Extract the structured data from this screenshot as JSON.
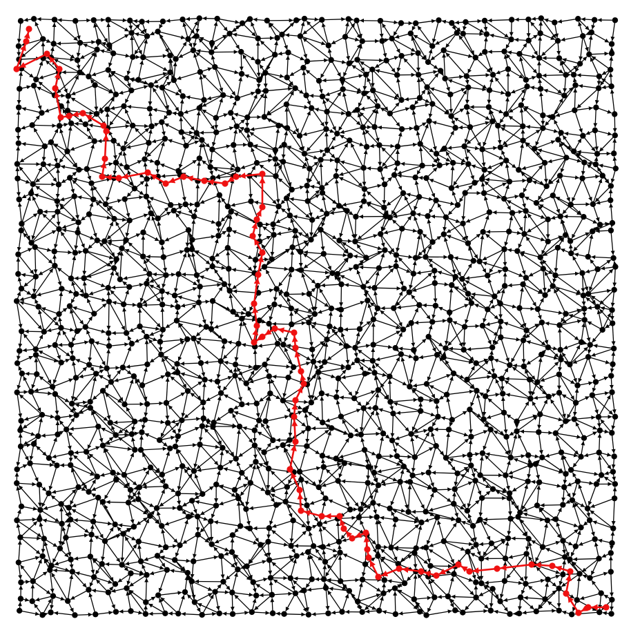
{
  "colors": {
    "background": "#ffffff",
    "edge": "#000000",
    "node": "#000000",
    "path": "#ee1111"
  },
  "graph": {
    "type": "directed-grid-graph",
    "path_node_count": 62,
    "path_direction": "start-to-end"
  }
}
